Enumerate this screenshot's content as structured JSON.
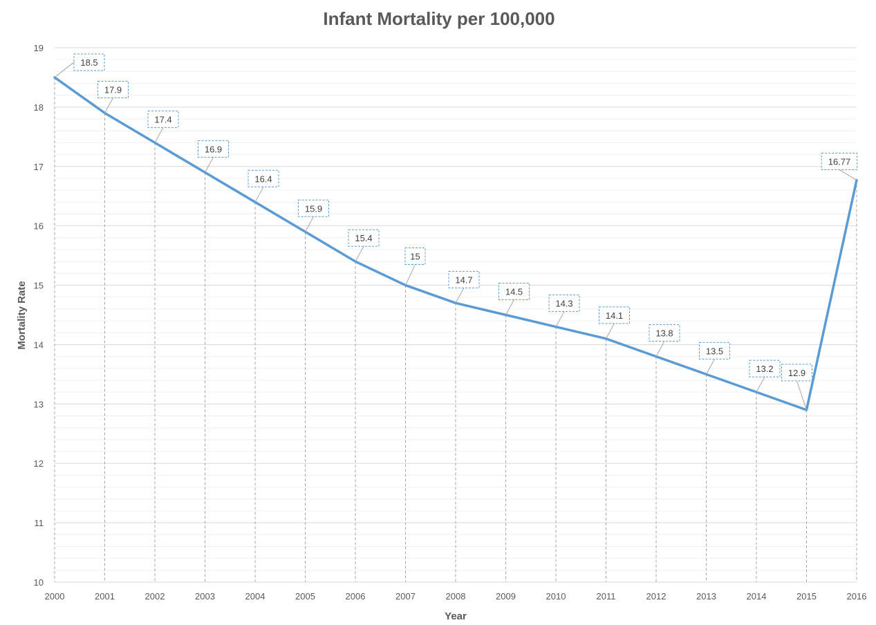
{
  "chart_data": {
    "type": "line",
    "title": "Infant Mortality per 100,000",
    "xlabel": "Year",
    "ylabel": "Mortality Rate",
    "x": [
      "2000",
      "2001",
      "2002",
      "2003",
      "2004",
      "2005",
      "2006",
      "2007",
      "2008",
      "2009",
      "2010",
      "2011",
      "2012",
      "2013",
      "2014",
      "2015",
      "2016"
    ],
    "values": [
      18.5,
      17.9,
      17.4,
      16.9,
      16.4,
      15.9,
      15.4,
      15,
      14.7,
      14.5,
      14.3,
      14.1,
      13.8,
      13.5,
      13.2,
      12.9,
      16.77
    ],
    "data_labels": [
      "18.5",
      "17.9",
      "17.4",
      "16.9",
      "16.4",
      "15.9",
      "15.4",
      "15",
      "14.7",
      "14.5",
      "14.3",
      "14.1",
      "13.8",
      "13.5",
      "13.2",
      "12.9",
      "16.77"
    ],
    "ylim": [
      10,
      19
    ],
    "y_ticks": [
      "10",
      "11",
      "12",
      "13",
      "14",
      "15",
      "16",
      "17",
      "18",
      "19"
    ],
    "grid": true,
    "minor_grid": true,
    "drop_lines": true,
    "legend": "none",
    "colors": {
      "line": "#5b9bd5",
      "label_border": "#5b9bd5",
      "major_grid": "#d9d9d9",
      "minor_grid": "#f0f0f0",
      "drop_line": "#a6a6a6",
      "text": "#595959"
    }
  }
}
